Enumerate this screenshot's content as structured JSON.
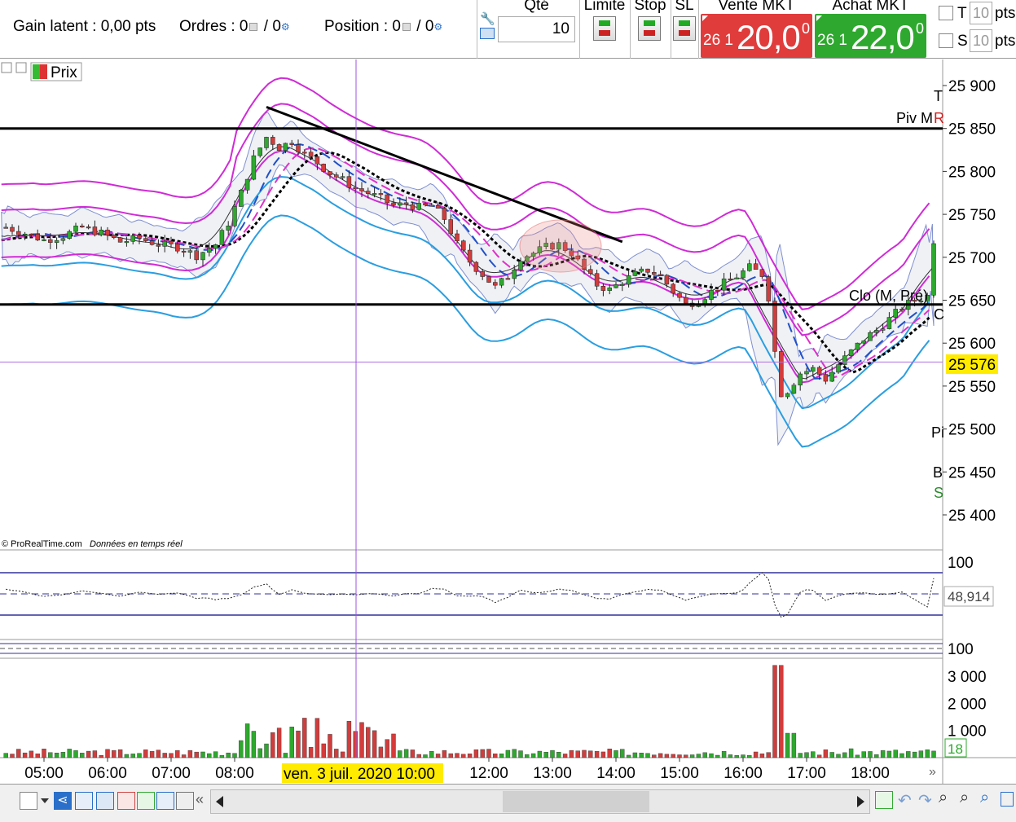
{
  "header": {
    "gain": "Gain latent : 0,00 pts",
    "ordres_label": "Ordres : 0",
    "ordres_sep": "/ 0",
    "position_label": "Position : 0",
    "position_sep": "/ 0",
    "qte_label": "Qté",
    "qte_value": "10",
    "limite_label": "Limite",
    "stop_label": "Stop",
    "sl_label": "SL",
    "vente_label": "Vente MKT",
    "achat_label": "Achat MKT",
    "vente_small": "26 1",
    "vente_big": "20,0",
    "vente_sup": "0",
    "achat_small": "26 1",
    "achat_big": "22,0",
    "achat_sup": "0",
    "t_label": "T",
    "s_label": "S",
    "t_value": "10",
    "s_value": "10",
    "pts_label": "pts",
    "colors": {
      "vente": "#e03c3c",
      "achat": "#2ea82e"
    }
  },
  "chart": {
    "instrument_label": "Prix",
    "credit": "© ProRealTime.com",
    "credit_sub": "Données en temps réel",
    "crosshair_date": "ven. 3 juil. 2020 10:00",
    "label_piv": "Piv M",
    "label_clo": "Clo (M, Pré)",
    "label_r": "R",
    "label_t": "T",
    "label_c": "C",
    "label_p": "Pi",
    "label_b": "B",
    "label_s": "S",
    "price_tag": "25 576",
    "osc_value": "48,914",
    "osc_top": "100",
    "osc2_top": "100",
    "vol_last": "18"
  },
  "chart_data": {
    "type": "candlestick",
    "price_axis": {
      "ticks": [
        25400,
        25450,
        25500,
        25550,
        25600,
        25650,
        25700,
        25750,
        25800,
        25850,
        25900
      ],
      "tick_labels": [
        "25 400",
        "25 450",
        "25 500",
        "25 550",
        "25 600",
        "25 650",
        "25 700",
        "25 750",
        "25 800",
        "25 850",
        "25 900"
      ],
      "range": [
        25375,
        25930
      ]
    },
    "time_axis": {
      "tick_labels": [
        "05:00",
        "06:00",
        "07:00",
        "08:00",
        "12:00",
        "13:00",
        "14:00",
        "15:00",
        "16:00",
        "17:00",
        "18:00"
      ],
      "tick_hours": [
        5,
        6,
        7,
        8,
        12,
        13,
        14,
        15,
        16,
        17,
        18
      ],
      "range_hours": [
        4.33,
        19.0
      ]
    },
    "horizontal_levels": [
      25850,
      25645,
      25578
    ],
    "current_price": 25576,
    "trendline": {
      "from": [
        8.5,
        25875
      ],
      "to": [
        14.1,
        25718
      ]
    },
    "price_path": [
      [
        4.4,
        25735
      ],
      [
        4.7,
        25728
      ],
      [
        5.0,
        25720
      ],
      [
        5.3,
        25725
      ],
      [
        5.6,
        25735
      ],
      [
        5.9,
        25728
      ],
      [
        6.2,
        25718
      ],
      [
        6.5,
        25722
      ],
      [
        6.8,
        25715
      ],
      [
        7.1,
        25712
      ],
      [
        7.4,
        25702
      ],
      [
        7.7,
        25715
      ],
      [
        7.9,
        25740
      ],
      [
        8.1,
        25775
      ],
      [
        8.3,
        25815
      ],
      [
        8.5,
        25840
      ],
      [
        8.7,
        25828
      ],
      [
        8.9,
        25835
      ],
      [
        9.1,
        25820
      ],
      [
        9.3,
        25810
      ],
      [
        9.5,
        25798
      ],
      [
        9.7,
        25790
      ],
      [
        9.9,
        25780
      ],
      [
        10.1,
        25775
      ],
      [
        10.3,
        25768
      ],
      [
        10.5,
        25760
      ],
      [
        10.7,
        25762
      ],
      [
        10.9,
        25758
      ],
      [
        11.1,
        25760
      ],
      [
        11.3,
        25745
      ],
      [
        11.5,
        25715
      ],
      [
        11.7,
        25695
      ],
      [
        11.9,
        25680
      ],
      [
        12.1,
        25665
      ],
      [
        12.3,
        25678
      ],
      [
        12.5,
        25700
      ],
      [
        12.7,
        25705
      ],
      [
        12.9,
        25712
      ],
      [
        13.1,
        25715
      ],
      [
        13.3,
        25705
      ],
      [
        13.5,
        25685
      ],
      [
        13.7,
        25668
      ],
      [
        13.9,
        25662
      ],
      [
        14.1,
        25672
      ],
      [
        14.3,
        25680
      ],
      [
        14.5,
        25685
      ],
      [
        14.7,
        25678
      ],
      [
        14.9,
        25660
      ],
      [
        15.1,
        25645
      ],
      [
        15.3,
        25650
      ],
      [
        15.5,
        25660
      ],
      [
        15.7,
        25670
      ],
      [
        15.9,
        25678
      ],
      [
        16.1,
        25688
      ],
      [
        16.3,
        25680
      ],
      [
        16.45,
        25640
      ],
      [
        16.55,
        25540
      ],
      [
        16.7,
        25545
      ],
      [
        16.9,
        25565
      ],
      [
        17.1,
        25570
      ],
      [
        17.3,
        25558
      ],
      [
        17.5,
        25575
      ],
      [
        17.7,
        25590
      ],
      [
        17.9,
        25605
      ],
      [
        18.1,
        25615
      ],
      [
        18.3,
        25628
      ],
      [
        18.5,
        25642
      ],
      [
        18.7,
        25650
      ],
      [
        18.9,
        25655
      ],
      [
        19.0,
        25720
      ]
    ],
    "volume_axis": {
      "tick_labels": [
        "3 000",
        "2 000",
        "1 000"
      ],
      "ticks": [
        3000,
        2000,
        1000
      ],
      "range": [
        0,
        3600
      ]
    },
    "oscillator_axis": {
      "tick_labels": [
        "100"
      ],
      "levels": [
        80,
        50,
        20
      ]
    }
  },
  "toolbar": {
    "icons": [
      "chart-type-icon",
      "share-icon",
      "book-icon",
      "chat-icon",
      "orders-icon",
      "portfolio-icon",
      "alerts-icon"
    ],
    "right_icons": [
      "cash-icon",
      "undo-icon",
      "redo-icon",
      "zoom-fit-icon",
      "zoom-out-icon",
      "zoom-in-icon",
      "fullscreen-icon"
    ]
  }
}
